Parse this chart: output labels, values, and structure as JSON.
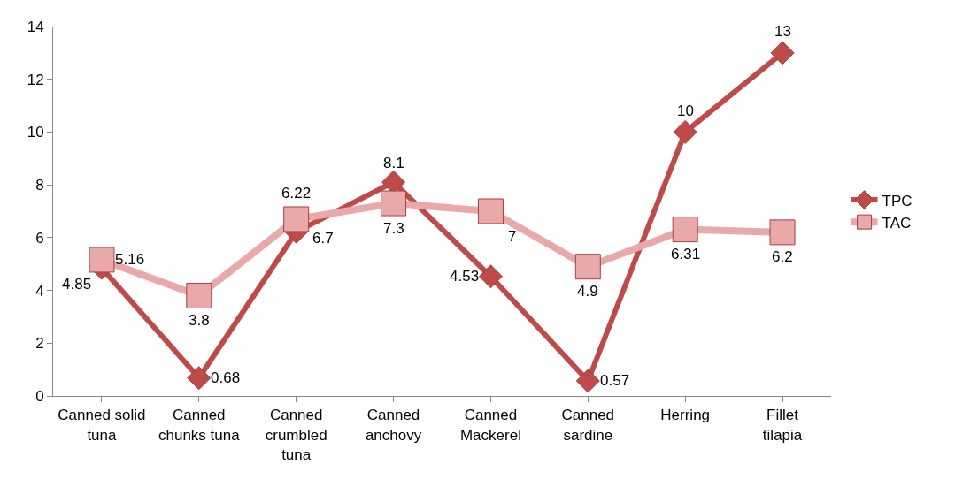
{
  "chart_data": {
    "type": "line",
    "categories": [
      "Canned solid tuna",
      "Canned chunks tuna",
      "Canned crumbled tuna",
      "Canned anchovy",
      "Canned Mackerel",
      "Canned sardine",
      "Herring",
      "Fillet tilapia"
    ],
    "series": [
      {
        "name": "TPC",
        "color": "#be4b48",
        "marker": "diamond",
        "values": [
          4.85,
          0.68,
          6.22,
          8.1,
          4.53,
          0.57,
          10,
          13
        ]
      },
      {
        "name": "TAC",
        "color": "#e8a9a8",
        "marker": "square",
        "values": [
          5.16,
          3.8,
          6.7,
          7.3,
          7,
          4.9,
          6.31,
          6.2
        ]
      }
    ],
    "ylim": [
      0,
      14
    ],
    "yticks": [
      0,
      2,
      4,
      6,
      8,
      10,
      12,
      14
    ],
    "data_labels": true,
    "legend": "right",
    "line_style": "solid"
  }
}
